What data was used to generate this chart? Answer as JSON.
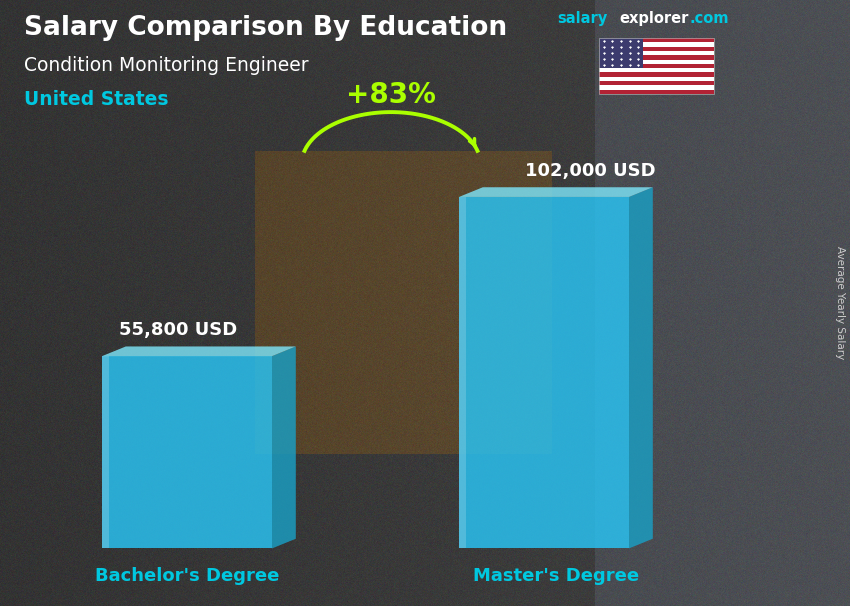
{
  "title_bold": "Salary Comparison By Education",
  "subtitle1": "Condition Monitoring Engineer",
  "subtitle2": "United States",
  "brand_salary": "salary",
  "brand_explorer": "explorer",
  "brand_com": ".com",
  "ylabel": "Average Yearly Salary",
  "categories": [
    "Bachelor's Degree",
    "Master's Degree"
  ],
  "values": [
    55800,
    102000
  ],
  "value_labels": [
    "55,800 USD",
    "102,000 USD"
  ],
  "pct_change": "+83%",
  "bar_color_front": "#29c5f6",
  "bar_color_side": "#1a9fc4",
  "bar_color_top": "#7de4f8",
  "bar_alpha": 0.82,
  "bg_color": "#3a3a3a",
  "title_color": "#ffffff",
  "subtitle1_color": "#ffffff",
  "subtitle2_color": "#00c8e0",
  "brand_salary_color": "#00c8e0",
  "brand_explorer_color": "#ffffff",
  "brand_com_color": "#00c8e0",
  "value_label_color": "#ffffff",
  "category_label_color": "#00c8e0",
  "pct_color": "#aaff00",
  "arrow_color": "#aaff00",
  "ylabel_color": "#cccccc",
  "figsize": [
    8.5,
    6.06
  ],
  "dpi": 100
}
